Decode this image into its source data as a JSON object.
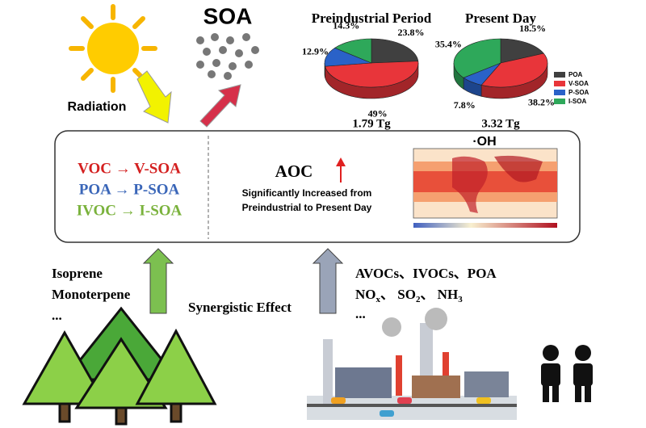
{
  "chart_data": [
    {
      "type": "pie",
      "title": "Preindustrial Period",
      "total": "1.79 Tg",
      "values": [
        23.8,
        49,
        12.9,
        14.3
      ],
      "value_labels": [
        "23.8%",
        "49%",
        "12.9%",
        "14.3%"
      ]
    },
    {
      "type": "pie",
      "title": "Present Day",
      "total": "3.32 Tg",
      "values": [
        18.5,
        38.2,
        7.8,
        35.4
      ],
      "value_labels": [
        "18.5%",
        "38.2%",
        "7.8%",
        "35.4%"
      ]
    }
  ],
  "legend": {
    "categories": [
      "POA",
      "V-SOA",
      "P-SOA",
      "I-SOA"
    ],
    "colors": [
      "#404040",
      "#e8353a",
      "#2a62c8",
      "#2ea85a"
    ]
  },
  "soa": "SOA",
  "radiation": "Radiation",
  "pathways": [
    "VOC → V-SOA",
    "POA → P-SOA",
    "IVOC → I-SOA"
  ],
  "aoc": {
    "title": "AOC",
    "line1": "Significantly Increased from",
    "line2": "Preindustrial to Present Day"
  },
  "map_title": "·OH",
  "biogenic": [
    "Isoprene",
    "Monoterpene",
    "..."
  ],
  "synergy": "Synergistic Effect",
  "anthropogenic": {
    "line1": "AVOCs、IVOCs、POA",
    "line2": [
      {
        "text": "NO"
      },
      {
        "sub": "x"
      },
      {
        "text": "、 SO"
      },
      {
        "sub": "2"
      },
      {
        "text": "、 NH"
      },
      {
        "sub": "3"
      }
    ],
    "line3": "..."
  }
}
